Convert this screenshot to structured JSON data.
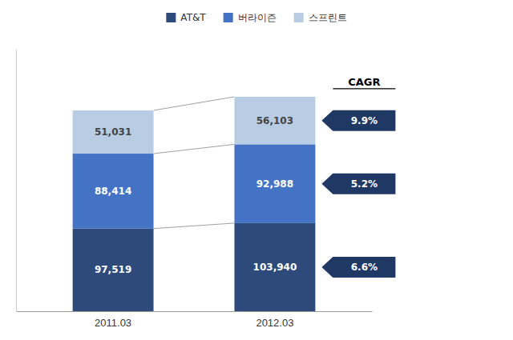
{
  "chart_data": {
    "type": "bar",
    "stacked": true,
    "categories": [
      "2011.03",
      "2012.03"
    ],
    "series": [
      {
        "name": "AT&T",
        "color": "#2E4A7A",
        "values": [
          97519,
          103940
        ],
        "value_labels": [
          "97,519",
          "103,940"
        ],
        "cagr": {
          "value": 6.6,
          "label": "6.6%",
          "color": "#1F3864"
        }
      },
      {
        "name": "버라이즌",
        "color": "#4472C4",
        "values": [
          88414,
          92988
        ],
        "value_labels": [
          "88,414",
          "92,988"
        ],
        "cagr": {
          "value": 5.2,
          "label": "5.2%",
          "color": "#1F3864"
        }
      },
      {
        "name": "스프린트",
        "color": "#B8CCE4",
        "values": [
          51031,
          56103
        ],
        "value_labels": [
          "51,031",
          "56,103"
        ],
        "cagr": {
          "value": 9.9,
          "label": "9.9%",
          "color": "#1F3864"
        }
      }
    ],
    "annotations": [
      "CAGR"
    ],
    "ylim": [
      0,
      308697.82
    ],
    "data_labels": true,
    "tick_labels": "x",
    "legend": "top",
    "grid": false
  }
}
